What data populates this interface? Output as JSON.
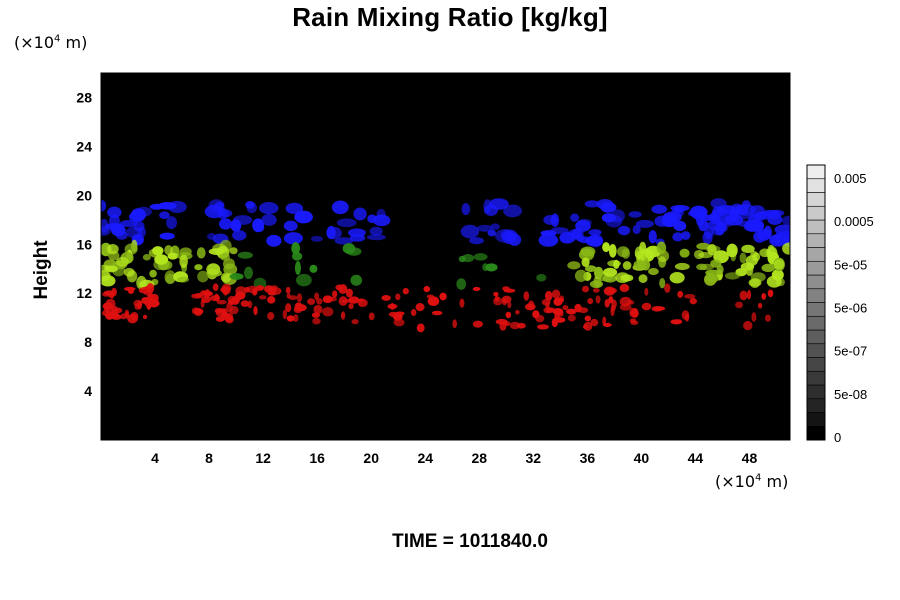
{
  "chart_data": {
    "type": "heatmap",
    "title": "Rain Mixing Ratio [kg/kg]",
    "ylabel": "Height",
    "xlabel": "",
    "x_unit_text": "(×10",
    "x_unit_exp": "4",
    "x_unit_tail": " m)",
    "y_unit_text": "(×10",
    "y_unit_exp": "4",
    "y_unit_tail": " m)",
    "xlim": [
      0,
      51
    ],
    "ylim": [
      0,
      30
    ],
    "x_ticks": [
      4,
      8,
      12,
      16,
      20,
      24,
      28,
      32,
      36,
      40,
      44,
      48
    ],
    "y_ticks": [
      4,
      8,
      12,
      16,
      20,
      24,
      28
    ],
    "background_color": "#000000",
    "colorbar": {
      "labels": [
        "0.005",
        "0.0005",
        "5e-05",
        "5e-06",
        "5e-07",
        "5e-08",
        "0"
      ],
      "colors": [
        "#000000",
        "#141414",
        "#242424",
        "#2e2e2e",
        "#3a3a3a",
        "#464646",
        "#525252",
        "#5e5e5e",
        "#6a6a6a",
        "#767676",
        "#828282",
        "#8e8e8e",
        "#9a9a9a",
        "#a6a6a6",
        "#b2b2b2",
        "#bebebe",
        "#cacaca",
        "#d6d6d6",
        "#e2e2e2",
        "#eeeeee"
      ]
    },
    "bands": [
      {
        "name": "blue",
        "color": "#1a1aff",
        "y_range": [
          16,
          19.5
        ]
      },
      {
        "name": "yellow-green",
        "color": "#b4e61e",
        "y_range": [
          12.5,
          16
        ]
      },
      {
        "name": "red",
        "color": "#e01010",
        "y_range": [
          8.8,
          12.5
        ]
      }
    ],
    "time_label": "TIME = 1011840.0"
  }
}
